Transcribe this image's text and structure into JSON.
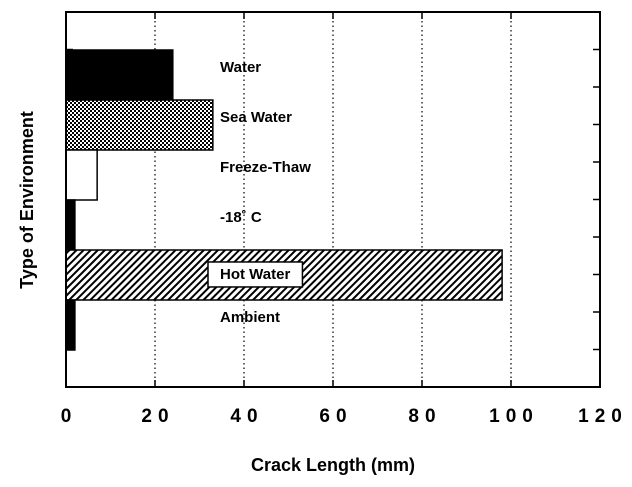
{
  "chart_data": {
    "type": "bar",
    "orientation": "horizontal",
    "xlabel": "Crack Length (mm)",
    "ylabel": "Type of Environment",
    "categories": [
      "Water",
      "Sea Water",
      "Freeze-Thaw",
      "-18˚ C",
      "Hot Water",
      "Ambient"
    ],
    "values": [
      24,
      33,
      7,
      2,
      98,
      2
    ],
    "fills": [
      "solid",
      "dots",
      "none",
      "solid",
      "hatch",
      "solid"
    ],
    "xlim": [
      0,
      120
    ],
    "xticks": [
      0,
      20,
      40,
      60,
      80,
      100,
      120
    ],
    "grid": true
  }
}
